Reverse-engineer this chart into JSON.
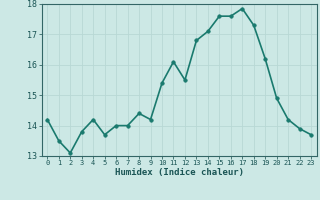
{
  "x": [
    0,
    1,
    2,
    3,
    4,
    5,
    6,
    7,
    8,
    9,
    10,
    11,
    12,
    13,
    14,
    15,
    16,
    17,
    18,
    19,
    20,
    21,
    22,
    23
  ],
  "y": [
    14.2,
    13.5,
    13.1,
    13.8,
    14.2,
    13.7,
    14.0,
    14.0,
    14.4,
    14.2,
    15.4,
    16.1,
    15.5,
    16.8,
    17.1,
    17.6,
    17.6,
    17.85,
    17.3,
    16.2,
    14.9,
    14.2,
    13.9,
    13.7
  ],
  "xlabel": "Humidex (Indice chaleur)",
  "ylim": [
    13,
    18
  ],
  "xlim": [
    -0.5,
    23.5
  ],
  "yticks": [
    13,
    14,
    15,
    16,
    17,
    18
  ],
  "xticks": [
    0,
    1,
    2,
    3,
    4,
    5,
    6,
    7,
    8,
    9,
    10,
    11,
    12,
    13,
    14,
    15,
    16,
    17,
    18,
    19,
    20,
    21,
    22,
    23
  ],
  "line_color": "#1a7a6e",
  "marker_size": 2.5,
  "bg_color": "#cce8e5",
  "grid_color": "#b8d8d5",
  "axis_color": "#336666",
  "tick_label_color": "#1a5555",
  "xlabel_color": "#1a5555",
  "line_width": 1.2
}
